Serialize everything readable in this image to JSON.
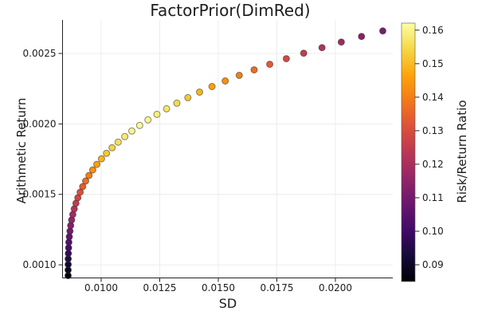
{
  "chart_data": {
    "type": "scatter",
    "title": "FactorPrior(DimRed)",
    "xlabel": "SD",
    "ylabel": "Arithmetic Return",
    "grid": true,
    "frame": "left-bottom-spines",
    "xlim": [
      0.00835,
      0.022449
    ],
    "ylim": [
      0.000907,
      0.002738
    ],
    "xticks": {
      "values": [
        0.01,
        0.0125,
        0.015,
        0.0175,
        0.02
      ],
      "labels": [
        "0.0100",
        "0.0125",
        "0.0150",
        "0.0175",
        "0.0200"
      ]
    },
    "yticks": {
      "values": [
        0.001,
        0.0015,
        0.002,
        0.0025
      ],
      "labels": [
        "0.0010",
        "0.0015",
        "0.0020",
        "0.0025"
      ]
    },
    "marker": {
      "radius_px": 4,
      "stroke_color": "#2a2a2a",
      "stroke_opacity": 0.55
    },
    "colors": {
      "spine": "#222222",
      "grid": "#ececec",
      "tick_text": "#1c1c1c",
      "background": "#ffffff"
    },
    "colorbar": {
      "label": "Risk/Return Ratio",
      "cmin": 0.085,
      "cmax": 0.1621,
      "ticks": {
        "values": [
          0.09,
          0.1,
          0.11,
          0.12,
          0.13,
          0.14,
          0.15,
          0.16
        ],
        "labels": [
          "0.09",
          "0.10",
          "0.11",
          "0.12",
          "0.13",
          "0.14",
          "0.15",
          "0.16"
        ]
      },
      "colormap": "inferno",
      "colormap_stops": [
        [
          0.0,
          "#000004"
        ],
        [
          0.1,
          "#160b39"
        ],
        [
          0.2,
          "#420a68"
        ],
        [
          0.3,
          "#6a176e"
        ],
        [
          0.4,
          "#932667"
        ],
        [
          0.5,
          "#bc3754"
        ],
        [
          0.6,
          "#dd513a"
        ],
        [
          0.7,
          "#f37819"
        ],
        [
          0.8,
          "#fca50a"
        ],
        [
          0.9,
          "#f6d746"
        ],
        [
          1.0,
          "#fcffa4"
        ]
      ]
    },
    "series": [
      {
        "name": "efficient-frontier",
        "point_format": [
          "sd",
          "arithmetic_return",
          "risk_return_ratio"
        ],
        "points": [
          [
            0.008588,
            0.0009236,
            0.086
          ],
          [
            0.008588,
            0.000963,
            0.089
          ],
          [
            0.00859,
            0.0010025,
            0.092
          ],
          [
            0.008592,
            0.001042,
            0.095
          ],
          [
            0.008598,
            0.0010814,
            0.098
          ],
          [
            0.008607,
            0.0011209,
            0.101
          ],
          [
            0.00862,
            0.0011604,
            0.104
          ],
          [
            0.008639,
            0.0011998,
            0.107
          ],
          [
            0.008665,
            0.0012393,
            0.11
          ],
          [
            0.008697,
            0.0012788,
            0.113
          ],
          [
            0.008738,
            0.0013182,
            0.116
          ],
          [
            0.008788,
            0.0013577,
            0.119
          ],
          [
            0.008849,
            0.0013972,
            0.122
          ],
          [
            0.008921,
            0.0014366,
            0.125
          ],
          [
            0.009004,
            0.0014761,
            0.128
          ],
          [
            0.009102,
            0.0015156,
            0.131
          ],
          [
            0.009211,
            0.001555,
            0.134
          ],
          [
            0.009337,
            0.0015945,
            0.137
          ],
          [
            0.00948,
            0.001634,
            0.14
          ],
          [
            0.009639,
            0.0016734,
            0.143
          ],
          [
            0.009816,
            0.0017129,
            0.146
          ],
          [
            0.010014,
            0.0017524,
            0.149
          ],
          [
            0.010228,
            0.0017918,
            0.152
          ],
          [
            0.010466,
            0.0018313,
            0.154
          ],
          [
            0.010724,
            0.0018708,
            0.156
          ],
          [
            0.011007,
            0.0019102,
            0.158
          ],
          [
            0.01131,
            0.0019497,
            0.16
          ],
          [
            0.011643,
            0.0019892,
            0.161
          ],
          [
            0.011997,
            0.0020286,
            0.16
          ],
          [
            0.012381,
            0.0020681,
            0.159
          ],
          [
            0.012793,
            0.0021076,
            0.157
          ],
          [
            0.013231,
            0.002147,
            0.155
          ],
          [
            0.013701,
            0.0021865,
            0.152
          ],
          [
            0.014201,
            0.002226,
            0.149
          ],
          [
            0.014731,
            0.0022654,
            0.146
          ],
          [
            0.015296,
            0.0023049,
            0.143
          ],
          [
            0.015895,
            0.0023444,
            0.14
          ],
          [
            0.016531,
            0.0023838,
            0.137
          ],
          [
            0.017197,
            0.0024233,
            0.133
          ],
          [
            0.017905,
            0.0024628,
            0.129
          ],
          [
            0.018646,
            0.0025022,
            0.125
          ],
          [
            0.019429,
            0.0025417,
            0.122
          ],
          [
            0.020252,
            0.0025812,
            0.118
          ],
          [
            0.021116,
            0.0026206,
            0.114
          ],
          [
            0.022024,
            0.0026601,
            0.111
          ]
        ]
      }
    ]
  }
}
